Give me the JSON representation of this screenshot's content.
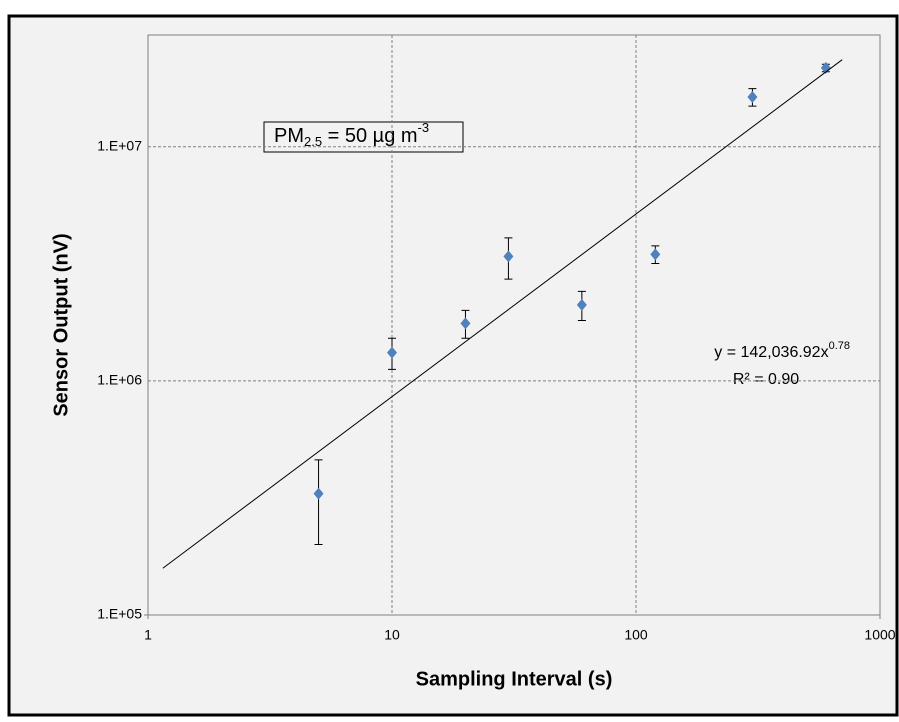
{
  "chart_data": {
    "type": "scatter",
    "x_label": "Sampling Interval (s)",
    "y_label": "Sensor Output (nV)",
    "log_x": true,
    "log_y": true,
    "grid": true,
    "xlim": [
      1,
      1000
    ],
    "xticks": [
      1,
      10,
      100,
      1000
    ],
    "ylim": [
      100000,
      30000000
    ],
    "yticks": [
      {
        "value": 100000,
        "label": "1.E+05"
      },
      {
        "value": 1000000,
        "label": "1.E+06"
      },
      {
        "value": 10000000,
        "label": "1.E+07"
      }
    ],
    "series": [
      {
        "color": "#4f81bd",
        "x": [
          5,
          10,
          20,
          30,
          60,
          120,
          300,
          600
        ],
        "values": [
          330000,
          1320000,
          1760000,
          3400000,
          2110000,
          3470000,
          16300000,
          21700000
        ],
        "errors": [
          130000,
          200000,
          240000,
          680000,
          300000,
          300000,
          1400000,
          800000
        ]
      },
      {
        "type": "trendline",
        "color": "#000000",
        "x": [
          1.15,
          700
        ],
        "values": [
          158400,
          23530000
        ]
      }
    ],
    "annotation": {
      "base": "PM",
      "subscript": "2.5",
      "rest": " = 50 µg m",
      "superscript": "-3"
    },
    "equation": {
      "text": "y = 142,036.92x",
      "superscript": "0.78",
      "r_squared": "R² = 0.90"
    }
  }
}
